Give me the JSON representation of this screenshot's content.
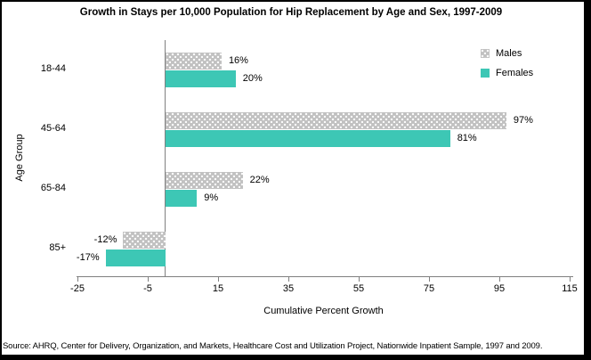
{
  "title": "Growth in Stays per 10,000 Population for Hip Replacement by Age and Sex, 1997-2009",
  "legend": {
    "males_label": "Males",
    "females_label": "Females"
  },
  "footer": {
    "source": "Source: AHRQ, Center for Delivery, Organization, and Markets, Healthcare Cost and Utilization Project, Nationwide Inpatient Sample, 1997 and 2009."
  },
  "colors": {
    "males_bar": "#c1c1c1",
    "females_bar": "#3dc7b5",
    "axis": "#808080",
    "text": "#000000",
    "background": "#ffffff",
    "frame_border": "#000000"
  },
  "chart_data": {
    "type": "bar",
    "orientation": "horizontal",
    "title": "Growth in Stays per 10,000 Population for Hip Replacement by Age and Sex, 1997-2009",
    "xlabel": "Cumulative Percent Growth",
    "ylabel": "Age Group",
    "categories": [
      "18-44",
      "45-64",
      "65-84",
      "85+"
    ],
    "series": [
      {
        "name": "Males",
        "values": [
          16,
          97,
          22,
          -12
        ],
        "labels": [
          "16%",
          "97%",
          "22%",
          "-12%"
        ],
        "color": "#c1c1c1",
        "pattern": "white-dots"
      },
      {
        "name": "Females",
        "values": [
          20,
          81,
          9,
          -17
        ],
        "labels": [
          "20%",
          "81%",
          "9%",
          "-17%"
        ],
        "color": "#3dc7b5",
        "pattern": "solid"
      }
    ],
    "xlim": [
      -25,
      115
    ],
    "xticks": [
      -25,
      -5,
      15,
      35,
      55,
      75,
      95,
      115
    ],
    "grid": false,
    "legend_position": "top-right",
    "zero_line": true
  }
}
